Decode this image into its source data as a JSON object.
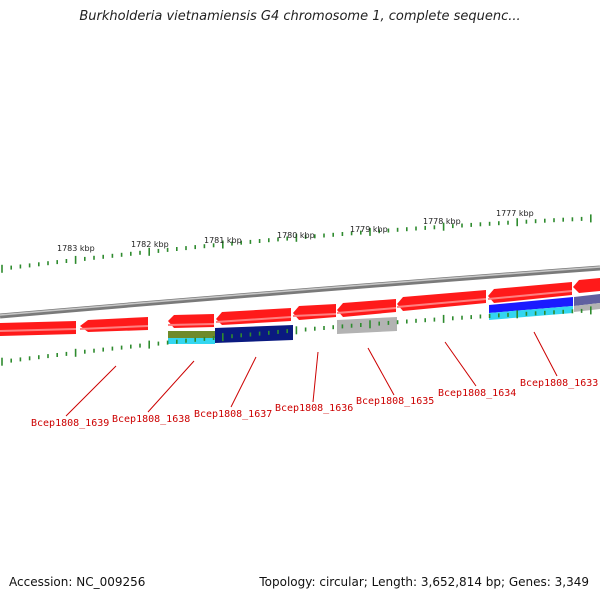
{
  "title": "Burkholderia vietnamiensis G4 chromosome 1, complete sequenc...",
  "footer": {
    "accession": "Accession: NC_009256",
    "summary": "Topology: circular; Length: 3,652,814 bp; Genes: 3,349"
  },
  "scale_labels": [
    "1783 kbp",
    "1782 kbp",
    "1781 kbp",
    "1780 kbp",
    "1779 kbp",
    "1778 kbp",
    "1777 kbp"
  ],
  "gene_labels": [
    "Bcep1808_1639",
    "Bcep1808_1638",
    "Bcep1808_1637",
    "Bcep1808_1636",
    "Bcep1808_1635",
    "Bcep1808_1634",
    "Bcep1808_1633"
  ],
  "colors": {
    "backbone": "#8a8a8a",
    "tick": "#2e8b2e",
    "gene": "#ff1a1a",
    "gene_label": "#cc0000",
    "feature_gray": "#b3b3b3",
    "feature_navy": "#0a1a80",
    "feature_olive": "#6f8a2a",
    "feature_cyan": "#33d6f0",
    "feature_blue": "#1a1aff",
    "feature_slate": "#6060a0"
  }
}
